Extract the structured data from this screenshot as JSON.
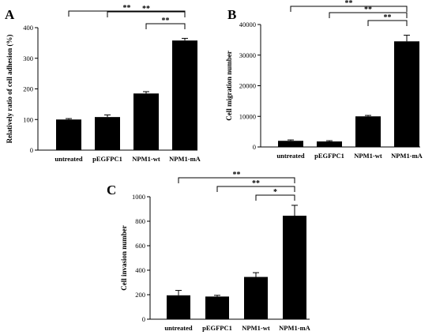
{
  "chart_data": [
    {
      "type": "bar",
      "panel_label": "A",
      "categories": [
        "untreated",
        "pEGFPC1",
        "NPM1-wt",
        "NPM1-mA"
      ],
      "values": [
        100,
        108,
        185,
        358
      ],
      "errors": [
        3,
        7,
        6,
        7
      ],
      "ylabel": "Relatively ratio of cell adhesion (%)",
      "xlabel": "",
      "ylim": [
        0,
        400
      ],
      "yticks": [
        "0",
        "100",
        "200",
        "300",
        "400"
      ],
      "bar_color": "#000000",
      "significance": [
        {
          "from": 0,
          "to": 3,
          "label": "**"
        },
        {
          "from": 1,
          "to": 3,
          "label": "**"
        },
        {
          "from": 2,
          "to": 3,
          "label": "**"
        }
      ]
    },
    {
      "type": "bar",
      "panel_label": "B",
      "categories": [
        "untreated",
        "pEGFPC1",
        "NPM1-wt",
        "NPM1-mA"
      ],
      "values": [
        2000,
        1800,
        10000,
        34500
      ],
      "errors": [
        300,
        250,
        300,
        2000
      ],
      "ylabel": "Cell migration number",
      "xlabel": "",
      "ylim": [
        0,
        40000
      ],
      "yticks": [
        "0",
        "10000",
        "20000",
        "30000",
        "40000"
      ],
      "bar_color": "#000000",
      "significance": [
        {
          "from": 0,
          "to": 3,
          "label": "**"
        },
        {
          "from": 1,
          "to": 3,
          "label": "**"
        },
        {
          "from": 2,
          "to": 3,
          "label": "**"
        }
      ]
    },
    {
      "type": "bar",
      "panel_label": "C",
      "categories": [
        "untreated",
        "pEGFPC1",
        "NPM1-wt",
        "NPM1-mA"
      ],
      "values": [
        195,
        185,
        345,
        845
      ],
      "errors": [
        40,
        10,
        35,
        85
      ],
      "ylabel": "Cell invasion number",
      "xlabel": "",
      "ylim": [
        0,
        1000
      ],
      "yticks": [
        "0",
        "200",
        "400",
        "600",
        "800",
        "1000"
      ],
      "bar_color": "#000000",
      "significance": [
        {
          "from": 0,
          "to": 3,
          "label": "**"
        },
        {
          "from": 1,
          "to": 3,
          "label": "**"
        },
        {
          "from": 2,
          "to": 3,
          "label": "*"
        }
      ]
    }
  ]
}
